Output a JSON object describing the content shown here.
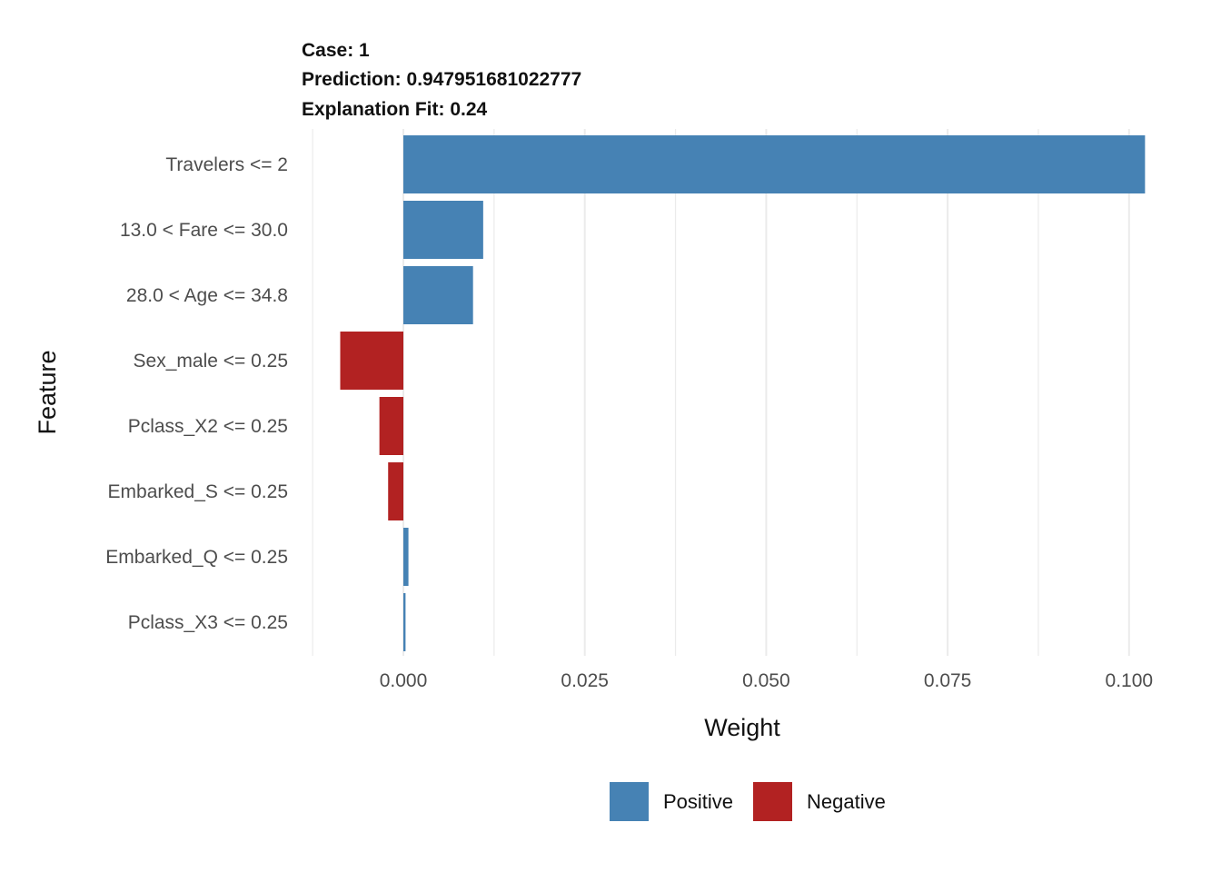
{
  "header": {
    "case": "Case: 1",
    "prediction": "Prediction: 0.947951681022777",
    "fit": "Explanation Fit: 0.24"
  },
  "chart_data": {
    "type": "bar",
    "orientation": "horizontal",
    "categories": [
      "Travelers <= 2",
      "13.0 < Fare <= 30.0",
      "28.0 < Age <= 34.8",
      "Sex_male <= 0.25",
      "Pclass_X2 <= 0.25",
      "Embarked_S <= 0.25",
      "Embarked_Q <= 0.25",
      "Pclass_X3 <= 0.25"
    ],
    "values": [
      0.1022,
      0.011,
      0.0096,
      -0.0087,
      -0.0033,
      -0.0021,
      0.0007,
      0.0003
    ],
    "xlabel": "Weight",
    "ylabel": "Feature",
    "xlim": [
      -0.0125,
      0.1025
    ],
    "x_ticks": [
      "0.000",
      "0.025",
      "0.050",
      "0.075",
      "0.100"
    ],
    "x_tick_values": [
      0,
      0.025,
      0.05,
      0.075,
      0.1
    ],
    "grid": true,
    "legend": {
      "position": "bottom",
      "entries": [
        {
          "label": "Positive",
          "color": "#4682B4"
        },
        {
          "label": "Negative",
          "color": "#B22222"
        }
      ]
    },
    "colors": {
      "positive": "#4682B4",
      "negative": "#B22222",
      "grid": "#EBEBEB"
    }
  }
}
